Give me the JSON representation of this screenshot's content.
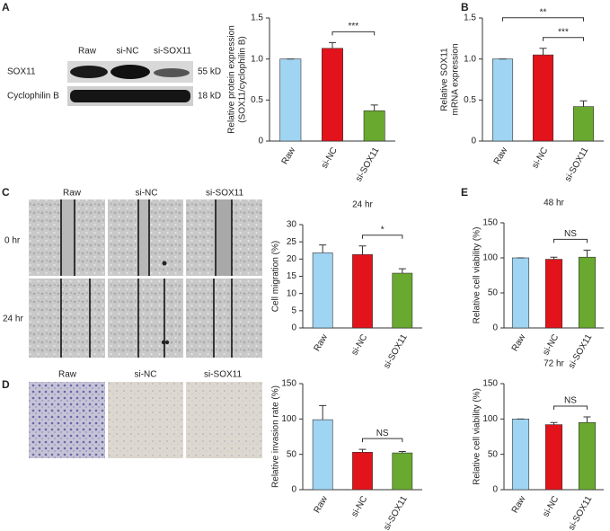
{
  "figure": {
    "panels": [
      "A",
      "B",
      "C",
      "D",
      "E"
    ],
    "blot": {
      "lanes": [
        "Raw",
        "si-NC",
        "si-SOX11"
      ],
      "rows": [
        "SOX11",
        "Cyclophilin B"
      ],
      "sizes": [
        "55 kD",
        "18 kD"
      ]
    },
    "migration_images": {
      "columns": [
        "Raw",
        "si-NC",
        "si-SOX11"
      ],
      "rows": [
        "0 hr",
        "24 hr"
      ]
    },
    "invasion_images": {
      "columns": [
        "Raw",
        "si-NC",
        "si-SOX11"
      ]
    }
  },
  "chart_data": [
    {
      "type": "bar",
      "ylabel": [
        "Relative protein expression",
        "(SOX11/cyclophilin B)"
      ],
      "categories": [
        "Raw",
        "si-NC",
        "si-SOX11"
      ],
      "values": [
        1.0,
        1.13,
        0.37
      ],
      "errors": [
        0,
        0.07,
        0.07
      ],
      "colors": [
        "#9fd4f2",
        "#e3131b",
        "#69a92f"
      ],
      "ylim": [
        0,
        1.5
      ],
      "yticks": [
        0,
        0.5,
        {
          "value": 1,
          "label": "1.0"
        },
        1.5
      ],
      "annotations": [
        {
          "label": "***",
          "between": [
            "si-NC",
            "si-SOX11"
          ]
        }
      ]
    },
    {
      "type": "bar",
      "ylabel": [
        "Relative SOX11",
        "mRNA expression"
      ],
      "categories": [
        "Raw",
        "si-NC",
        "si-SOX11"
      ],
      "values": [
        1.0,
        1.05,
        0.42
      ],
      "errors": [
        0,
        0.08,
        0.07
      ],
      "colors": [
        "#9fd4f2",
        "#e3131b",
        "#69a92f"
      ],
      "ylim": [
        0,
        1.5
      ],
      "yticks": [
        0,
        0.5,
        {
          "value": 1,
          "label": "1.0"
        },
        1.5
      ],
      "annotations": [
        {
          "label": "***",
          "between": [
            "si-NC",
            "si-SOX11"
          ]
        },
        {
          "label": "**",
          "between": [
            "Raw",
            "si-SOX11"
          ]
        }
      ]
    },
    {
      "type": "bar",
      "title": "24 hr",
      "ylabel": [
        "Cell migration (%)"
      ],
      "categories": [
        "Raw",
        "si-NC",
        "si-SOX11"
      ],
      "values": [
        21.8,
        21.3,
        15.9
      ],
      "errors": [
        2.3,
        2.5,
        1.3
      ],
      "colors": [
        "#9fd4f2",
        "#e3131b",
        "#69a92f"
      ],
      "ylim": [
        0,
        30
      ],
      "yticks": [
        0,
        5,
        10,
        15,
        20,
        25,
        30
      ],
      "annotations": [
        {
          "label": "*",
          "between": [
            "si-NC",
            "si-SOX11"
          ]
        }
      ]
    },
    {
      "type": "bar",
      "ylabel": [
        "Relative invasion rate (%)"
      ],
      "categories": [
        "Raw",
        "si-NC",
        "si-SOX11"
      ],
      "values": [
        99,
        53,
        52
      ],
      "errors": [
        20,
        4,
        2
      ],
      "colors": [
        "#9fd4f2",
        "#e3131b",
        "#69a92f"
      ],
      "ylim": [
        0,
        150
      ],
      "yticks": [
        0,
        50,
        100,
        150
      ],
      "annotations": [
        {
          "label": "NS",
          "between": [
            "si-NC",
            "si-SOX11"
          ]
        }
      ]
    },
    {
      "type": "bar",
      "title": "48 hr",
      "ylabel": [
        "Relative cell viability (%)"
      ],
      "categories": [
        "Raw",
        "si-NC",
        "si-SOX11"
      ],
      "values": [
        100,
        98,
        101
      ],
      "errors": [
        0,
        3,
        10
      ],
      "colors": [
        "#9fd4f2",
        "#e3131b",
        "#69a92f"
      ],
      "ylim": [
        0,
        150
      ],
      "yticks": [
        0,
        50,
        100,
        150
      ],
      "annotations": [
        {
          "label": "NS",
          "between": [
            "si-NC",
            "si-SOX11"
          ]
        }
      ]
    },
    {
      "type": "bar",
      "title": "72 hr",
      "ylabel": [
        "Relative cell viability (%)"
      ],
      "categories": [
        "Raw",
        "si-NC",
        "si-SOX11"
      ],
      "values": [
        100,
        92,
        95
      ],
      "errors": [
        0,
        3,
        8
      ],
      "colors": [
        "#9fd4f2",
        "#e3131b",
        "#69a92f"
      ],
      "ylim": [
        0,
        150
      ],
      "yticks": [
        0,
        50,
        100,
        150
      ],
      "annotations": [
        {
          "label": "NS",
          "between": [
            "si-NC",
            "si-SOX11"
          ]
        }
      ]
    }
  ]
}
